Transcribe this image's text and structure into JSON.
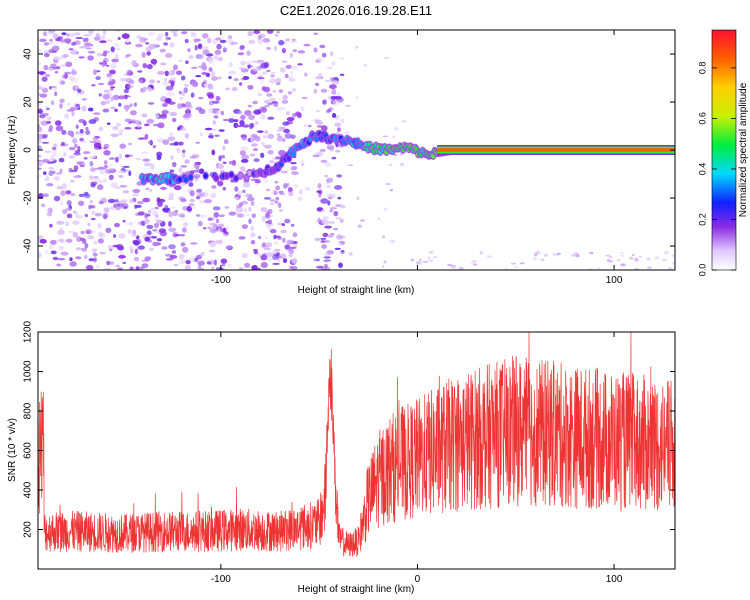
{
  "chart_data": [
    {
      "type": "heatmap",
      "title": "C2E1.2026.016.19.28.E11",
      "xlabel": "Height of straight line (km)",
      "ylabel": "Frequency (Hz)",
      "xlim": [
        -193,
        131
      ],
      "ylim": [
        -50,
        50
      ],
      "x_ticks": [
        -100,
        0,
        100
      ],
      "x_tick_labels": [
        "-100",
        "",
        "100"
      ],
      "y_ticks": [
        -40,
        -20,
        0,
        20,
        40
      ],
      "y_tick_labels": [
        "-40",
        "-20",
        "0",
        "20",
        "40"
      ],
      "colorbar": {
        "label": "Normalized spectral amplitude",
        "range": [
          0,
          0.95
        ],
        "ticks": [
          0.0,
          0.2,
          0.4,
          0.6,
          0.8
        ],
        "tick_labels": [
          "0.0",
          "0.2",
          "0.4",
          "0.6",
          "0.8"
        ]
      },
      "ridge": [
        {
          "x": -140,
          "y": -12,
          "v": 0.35
        },
        {
          "x": -130,
          "y": -12,
          "v": 0.4
        },
        {
          "x": -120,
          "y": -12,
          "v": 0.3
        },
        {
          "x": -80,
          "y": -10,
          "v": 0.15
        },
        {
          "x": -70,
          "y": -6,
          "v": 0.25
        },
        {
          "x": -60,
          "y": 2,
          "v": 0.35
        },
        {
          "x": -52,
          "y": 6,
          "v": 0.3
        },
        {
          "x": -35,
          "y": 4,
          "v": 0.35
        },
        {
          "x": -25,
          "y": 1,
          "v": 0.45
        },
        {
          "x": -15,
          "y": 0,
          "v": 0.5
        },
        {
          "x": -5,
          "y": 1,
          "v": 0.55
        },
        {
          "x": 5,
          "y": -2,
          "v": 0.5
        },
        {
          "x": 20,
          "y": 0,
          "v": 0.85
        },
        {
          "x": 60,
          "y": 0,
          "v": 0.9
        },
        {
          "x": 100,
          "y": 0,
          "v": 0.85
        },
        {
          "x": 130,
          "y": 0,
          "v": 0.8
        }
      ]
    },
    {
      "type": "line",
      "xlabel": "Height of straight line (km)",
      "ylabel": "SNR (10 * v/v)",
      "xlim": [
        -193,
        131
      ],
      "ylim": [
        0,
        1200
      ],
      "x_ticks": [
        -100,
        0,
        100
      ],
      "x_tick_labels": [
        "-100",
        "0",
        "100"
      ],
      "y_ticks": [
        200,
        400,
        600,
        800,
        1000,
        1200
      ],
      "y_tick_labels": [
        "200",
        "400",
        "600",
        "800",
        "1000",
        "1200"
      ],
      "color": "#ee3333",
      "series": [
        {
          "x": [
            -190,
            -170,
            -150,
            -130,
            -110,
            -90,
            -70,
            -60,
            -50,
            -47,
            -45,
            -44,
            -42,
            -40,
            -35,
            -30,
            -25,
            -20,
            -15,
            -10,
            -5,
            0,
            10,
            20,
            30,
            40,
            50,
            60,
            70,
            80,
            90,
            100,
            110,
            120,
            130
          ],
          "y": [
            190,
            190,
            180,
            190,
            190,
            200,
            190,
            210,
            230,
            350,
            900,
            1000,
            500,
            150,
            120,
            140,
            350,
            450,
            500,
            530,
            540,
            560,
            600,
            640,
            660,
            680,
            700,
            690,
            680,
            670,
            660,
            650,
            640,
            630,
            620
          ]
        }
      ]
    }
  ]
}
